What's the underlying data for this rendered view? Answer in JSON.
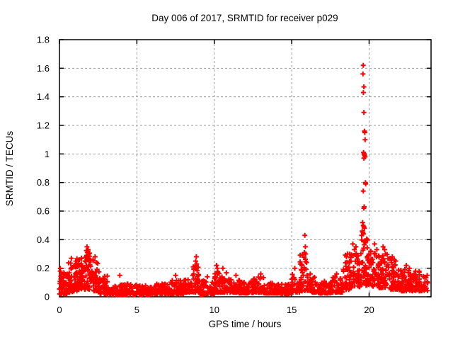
{
  "figure": {
    "background": "#ffffff"
  },
  "chart_data": {
    "type": "scatter",
    "title": "Day 006 of 2017, SRMTID for receiver p029",
    "xlabel": "GPS time / hours",
    "ylabel": "SRMTID / TECUs",
    "xlim": [
      0,
      24
    ],
    "ylim": [
      0,
      1.8
    ],
    "xticks": [
      0,
      5,
      10,
      15,
      20
    ],
    "xtick_labels": [
      "0",
      "5",
      "10",
      "15",
      "20"
    ],
    "yticks": [
      0,
      0.2,
      0.4,
      0.6,
      0.8,
      1,
      1.2,
      1.4,
      1.6,
      1.8
    ],
    "ytick_labels": [
      "0",
      "0.2",
      "0.4",
      "0.6",
      "0.8",
      "1",
      "1.2",
      "1.4",
      "1.6",
      "1.8"
    ],
    "grid": "dashed",
    "legend_position": "none",
    "marker": "plus",
    "marker_size": 7,
    "series_color": "#ff0000",
    "axis_color": "#000000",
    "grid_color": "#9a9a9a",
    "seed": 42,
    "band_segments": [
      {
        "t0": 0.0,
        "t1": 0.5,
        "n": 45,
        "lo": 0.02,
        "hi": 0.2,
        "skew": 2.2
      },
      {
        "t0": 0.5,
        "t1": 0.9,
        "n": 40,
        "lo": 0.03,
        "hi": 0.24,
        "skew": 1.8
      },
      {
        "t0": 0.9,
        "t1": 1.2,
        "n": 30,
        "lo": 0.04,
        "hi": 0.27,
        "skew": 1.8
      },
      {
        "t0": 1.2,
        "t1": 1.6,
        "n": 40,
        "lo": 0.05,
        "hi": 0.28,
        "skew": 1.6
      },
      {
        "t0": 1.6,
        "t1": 2.1,
        "n": 50,
        "lo": 0.05,
        "hi": 0.34,
        "skew": 1.5
      },
      {
        "t0": 2.1,
        "t1": 2.6,
        "n": 45,
        "lo": 0.04,
        "hi": 0.26,
        "skew": 1.8
      },
      {
        "t0": 2.6,
        "t1": 3.1,
        "n": 40,
        "lo": 0.02,
        "hi": 0.15,
        "skew": 2.0
      },
      {
        "t0": 3.1,
        "t1": 4.0,
        "n": 60,
        "lo": 0.015,
        "hi": 0.09,
        "skew": 2.0
      },
      {
        "t0": 4.0,
        "t1": 5.0,
        "n": 65,
        "lo": 0.015,
        "hi": 0.09,
        "skew": 2.2
      },
      {
        "t0": 5.0,
        "t1": 6.0,
        "n": 65,
        "lo": 0.015,
        "hi": 0.08,
        "skew": 2.2
      },
      {
        "t0": 6.0,
        "t1": 7.0,
        "n": 65,
        "lo": 0.02,
        "hi": 0.09,
        "skew": 2.2
      },
      {
        "t0": 7.0,
        "t1": 7.6,
        "n": 40,
        "lo": 0.02,
        "hi": 0.12,
        "skew": 2.0
      },
      {
        "t0": 7.6,
        "t1": 8.1,
        "n": 35,
        "lo": 0.02,
        "hi": 0.13,
        "skew": 2.0
      },
      {
        "t0": 8.1,
        "t1": 8.6,
        "n": 35,
        "lo": 0.03,
        "hi": 0.12,
        "skew": 2.0
      },
      {
        "t0": 8.6,
        "t1": 9.0,
        "n": 35,
        "lo": 0.03,
        "hi": 0.22,
        "skew": 1.7
      },
      {
        "t0": 9.0,
        "t1": 9.3,
        "n": 20,
        "lo": 0.02,
        "hi": 0.12,
        "skew": 2.0
      },
      {
        "t0": 9.3,
        "t1": 10.0,
        "n": 45,
        "lo": 0.02,
        "hi": 0.11,
        "skew": 2.2
      },
      {
        "t0": 10.0,
        "t1": 10.4,
        "n": 30,
        "lo": 0.03,
        "hi": 0.18,
        "skew": 1.8
      },
      {
        "t0": 10.4,
        "t1": 10.8,
        "n": 30,
        "lo": 0.03,
        "hi": 0.17,
        "skew": 1.8
      },
      {
        "t0": 10.8,
        "t1": 11.5,
        "n": 45,
        "lo": 0.03,
        "hi": 0.13,
        "skew": 2.0
      },
      {
        "t0": 11.5,
        "t1": 12.5,
        "n": 65,
        "lo": 0.025,
        "hi": 0.12,
        "skew": 2.1
      },
      {
        "t0": 12.5,
        "t1": 13.2,
        "n": 45,
        "lo": 0.03,
        "hi": 0.14,
        "skew": 2.0
      },
      {
        "t0": 13.2,
        "t1": 14.0,
        "n": 50,
        "lo": 0.025,
        "hi": 0.1,
        "skew": 2.1
      },
      {
        "t0": 14.0,
        "t1": 15.0,
        "n": 60,
        "lo": 0.02,
        "hi": 0.09,
        "skew": 2.1
      },
      {
        "t0": 15.0,
        "t1": 15.5,
        "n": 33,
        "lo": 0.03,
        "hi": 0.17,
        "skew": 1.8
      },
      {
        "t0": 15.5,
        "t1": 16.1,
        "n": 40,
        "lo": 0.04,
        "hi": 0.3,
        "skew": 1.6
      },
      {
        "t0": 16.1,
        "t1": 16.6,
        "n": 33,
        "lo": 0.03,
        "hi": 0.14,
        "skew": 1.9
      },
      {
        "t0": 16.6,
        "t1": 17.5,
        "n": 55,
        "lo": 0.025,
        "hi": 0.11,
        "skew": 2.0
      },
      {
        "t0": 17.5,
        "t1": 18.3,
        "n": 50,
        "lo": 0.03,
        "hi": 0.14,
        "skew": 1.9
      },
      {
        "t0": 18.3,
        "t1": 19.0,
        "n": 55,
        "lo": 0.05,
        "hi": 0.3,
        "skew": 1.5
      },
      {
        "t0": 19.0,
        "t1": 19.45,
        "n": 35,
        "lo": 0.07,
        "hi": 0.32,
        "skew": 1.5
      },
      {
        "t0": 19.45,
        "t1": 19.95,
        "n": 45,
        "lo": 0.08,
        "hi": 0.42,
        "skew": 1.4
      },
      {
        "t0": 19.95,
        "t1": 20.6,
        "n": 55,
        "lo": 0.07,
        "hi": 0.33,
        "skew": 1.5
      },
      {
        "t0": 20.6,
        "t1": 21.2,
        "n": 50,
        "lo": 0.06,
        "hi": 0.32,
        "skew": 1.5
      },
      {
        "t0": 21.2,
        "t1": 21.9,
        "n": 55,
        "lo": 0.05,
        "hi": 0.28,
        "skew": 1.7
      },
      {
        "t0": 21.9,
        "t1": 22.6,
        "n": 55,
        "lo": 0.04,
        "hi": 0.2,
        "skew": 1.8
      },
      {
        "t0": 22.6,
        "t1": 23.3,
        "n": 50,
        "lo": 0.04,
        "hi": 0.18,
        "skew": 1.8
      },
      {
        "t0": 23.3,
        "t1": 23.8,
        "n": 25,
        "lo": 0.04,
        "hi": 0.16,
        "skew": 1.9
      }
    ],
    "outliers": [
      [
        0.05,
        0.18
      ],
      [
        0.77,
        0.27
      ],
      [
        1.05,
        0.25
      ],
      [
        1.78,
        0.35
      ],
      [
        1.8,
        0.31
      ],
      [
        1.85,
        0.33
      ],
      [
        2.3,
        0.28
      ],
      [
        3.9,
        0.15
      ],
      [
        7.5,
        0.15
      ],
      [
        8.8,
        0.25
      ],
      [
        8.84,
        0.28
      ],
      [
        8.86,
        0.23
      ],
      [
        9.55,
        0.14
      ],
      [
        10.15,
        0.22
      ],
      [
        10.2,
        0.2
      ],
      [
        10.55,
        0.2
      ],
      [
        11.4,
        0.15
      ],
      [
        13.0,
        0.16
      ],
      [
        15.2,
        0.2
      ],
      [
        15.82,
        0.31
      ],
      [
        15.85,
        0.43
      ],
      [
        15.88,
        0.35
      ],
      [
        15.9,
        0.3
      ],
      [
        16.2,
        0.16
      ],
      [
        17.9,
        0.16
      ],
      [
        18.6,
        0.3
      ],
      [
        18.95,
        0.37
      ],
      [
        19.05,
        0.33
      ],
      [
        19.15,
        0.35
      ],
      [
        19.52,
        0.43
      ],
      [
        19.55,
        0.46
      ],
      [
        19.58,
        0.52
      ],
      [
        19.6,
        0.45
      ],
      [
        19.6,
        1.56
      ],
      [
        19.62,
        0.5
      ],
      [
        19.62,
        0.74
      ],
      [
        19.62,
        1.62
      ],
      [
        19.63,
        1.43
      ],
      [
        19.64,
        0.44
      ],
      [
        19.64,
        1.01
      ],
      [
        19.66,
        0.49
      ],
      [
        19.66,
        0.62
      ],
      [
        19.66,
        0.97
      ],
      [
        19.66,
        1.29
      ],
      [
        19.66,
        1.47
      ],
      [
        19.68,
        0.63
      ],
      [
        19.68,
        1.0
      ],
      [
        19.7,
        0.48
      ],
      [
        19.7,
        0.99
      ],
      [
        19.7,
        1.16
      ],
      [
        19.72,
        1.15
      ],
      [
        19.74,
        0.98
      ],
      [
        19.74,
        1.1
      ],
      [
        19.76,
        0.8
      ],
      [
        19.78,
        0.79
      ],
      [
        20.1,
        0.32
      ],
      [
        20.35,
        0.37
      ],
      [
        20.5,
        0.33
      ],
      [
        20.9,
        0.35
      ],
      [
        21.0,
        0.33
      ],
      [
        21.05,
        0.3
      ],
      [
        21.5,
        0.28
      ],
      [
        22.4,
        0.22
      ],
      [
        22.6,
        0.2
      ],
      [
        23.0,
        0.18
      ]
    ],
    "dense_square_marker": {
      "x": 9.2,
      "y": 0.01
    }
  }
}
